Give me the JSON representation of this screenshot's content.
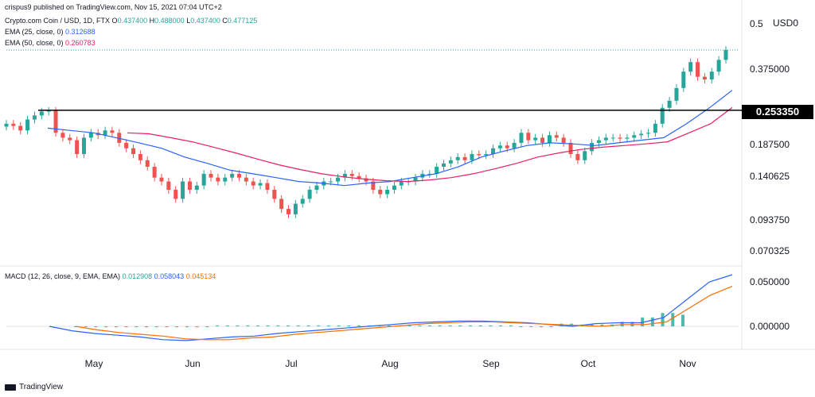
{
  "header": {
    "publisher": "crispus9 published on TradingView.com, Nov 15, 2021 07:04 UTC+2",
    "symbol": "Crypto.com Coin / USD, 1D, FTX",
    "ohlc": {
      "o_label": "O",
      "o": "0.437400",
      "h_label": "H",
      "h": "0.488000",
      "l_label": "L",
      "l": "0.437400",
      "c_label": "C",
      "c": "0.477125"
    },
    "ema25_label": "EMA (25, close, 0)",
    "ema25_value": "0.312688",
    "ema50_label": "EMA (50, close, 0)",
    "ema50_value": "0.260783"
  },
  "macd_header": {
    "label": "MACD (12, 26, close, 9, EMA, EMA)",
    "hist": "0.012908",
    "macd": "0.058043",
    "signal": "0.045134"
  },
  "price_axis": {
    "ticks": [
      "0.5",
      "0.375000",
      "0.187500",
      "0.140625",
      "0.093750",
      "0.070325"
    ],
    "currency": "USD",
    "top_partial": "0"
  },
  "macd_axis": {
    "ticks": [
      "0.050000",
      "0.000000"
    ]
  },
  "x_axis": {
    "ticks": [
      "May",
      "Jun",
      "Jul",
      "Aug",
      "Sep",
      "Oct",
      "Nov"
    ]
  },
  "level_line": {
    "label": "0.253350"
  },
  "footer": {
    "brand": "TradingView"
  },
  "colors": {
    "up": "#26a69a",
    "down": "#ef5350",
    "ema25": "#2962ff",
    "ema50": "#e91e63",
    "macd": "#2962ff",
    "signal": "#ff6d00",
    "hist_up": "#26a69a",
    "hist_down": "#ef5350",
    "level": "#000000"
  },
  "chart_data": {
    "type": "candlestick",
    "scale": "log",
    "ylim": [
      0.0625,
      0.5
    ],
    "x_labels": [
      "May",
      "Jun",
      "Jul",
      "Aug",
      "Sep",
      "Oct",
      "Nov"
    ],
    "horizontal_level": 0.25335,
    "price_closes": [
      0.22,
      0.215,
      0.205,
      0.23,
      0.24,
      0.25,
      0.252,
      0.2,
      0.19,
      0.185,
      0.16,
      0.19,
      0.2,
      0.195,
      0.205,
      0.2,
      0.18,
      0.17,
      0.16,
      0.15,
      0.14,
      0.125,
      0.12,
      0.11,
      0.1,
      0.12,
      0.11,
      0.115,
      0.13,
      0.125,
      0.12,
      0.125,
      0.13,
      0.125,
      0.12,
      0.115,
      0.118,
      0.11,
      0.1,
      0.09,
      0.085,
      0.095,
      0.1,
      0.11,
      0.115,
      0.12,
      0.12,
      0.125,
      0.13,
      0.127,
      0.124,
      0.12,
      0.11,
      0.105,
      0.11,
      0.115,
      0.12,
      0.12,
      0.125,
      0.13,
      0.13,
      0.14,
      0.145,
      0.15,
      0.155,
      0.15,
      0.16,
      0.158,
      0.16,
      0.17,
      0.175,
      0.17,
      0.18,
      0.2,
      0.185,
      0.19,
      0.18,
      0.195,
      0.19,
      0.18,
      0.16,
      0.15,
      0.165,
      0.18,
      0.185,
      0.19,
      0.19,
      0.188,
      0.19,
      0.195,
      0.198,
      0.2,
      0.22,
      0.26,
      0.28,
      0.32,
      0.38,
      0.42,
      0.36,
      0.35,
      0.38,
      0.43,
      0.477
    ],
    "ema25": [
      0.21,
      0.205,
      0.2,
      0.19,
      0.18,
      0.17,
      0.155,
      0.145,
      0.135,
      0.13,
      0.125,
      0.12,
      0.118,
      0.115,
      0.118,
      0.12,
      0.125,
      0.13,
      0.14,
      0.155,
      0.165,
      0.175,
      0.18,
      0.178,
      0.175,
      0.18,
      0.185,
      0.19,
      0.22,
      0.26,
      0.3125
    ],
    "ema50": [
      0.2,
      0.198,
      0.19,
      0.182,
      0.172,
      0.162,
      0.152,
      0.143,
      0.136,
      0.13,
      0.126,
      0.123,
      0.121,
      0.12,
      0.122,
      0.125,
      0.13,
      0.137,
      0.145,
      0.155,
      0.162,
      0.168,
      0.172,
      0.175,
      0.178,
      0.182,
      0.2,
      0.22,
      0.2608
    ],
    "macd_line": [
      0.0,
      -0.005,
      -0.008,
      -0.01,
      -0.012,
      -0.015,
      -0.016,
      -0.014,
      -0.012,
      -0.011,
      -0.008,
      -0.006,
      -0.004,
      -0.002,
      0.0,
      0.002,
      0.004,
      0.005,
      0.006,
      0.006,
      0.005,
      0.004,
      0.002,
      0.0,
      0.003,
      0.004,
      0.004,
      0.01,
      0.03,
      0.05,
      0.058
    ],
    "signal_line": [
      0.0,
      -0.004,
      -0.007,
      -0.009,
      -0.011,
      -0.014,
      -0.015,
      -0.015,
      -0.013,
      -0.012,
      -0.009,
      -0.007,
      -0.005,
      -0.003,
      -0.001,
      0.001,
      0.003,
      0.004,
      0.005,
      0.005,
      0.004,
      0.003,
      0.002,
      0.001,
      0.0,
      0.002,
      0.002,
      0.005,
      0.02,
      0.035,
      0.045
    ]
  }
}
